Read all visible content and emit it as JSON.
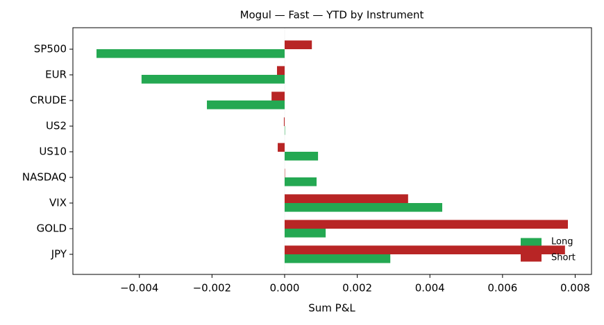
{
  "chart_data": {
    "type": "barh",
    "title": "Mogul — Fast — YTD by Instrument",
    "xlabel": "Sum P&L",
    "categories": [
      "SP500",
      "EUR",
      "CRUDE",
      "US2",
      "US10",
      "NASDAQ",
      "VIX",
      "GOLD",
      "JPY"
    ],
    "series": [
      {
        "name": "Long",
        "color": "#24a852",
        "values": [
          -0.00518,
          -0.00394,
          -0.00214,
          1e-05,
          0.00092,
          0.00088,
          0.00434,
          0.00113,
          0.00291
        ]
      },
      {
        "name": "Short",
        "color": "#b82525",
        "values": [
          0.00075,
          -0.00021,
          -0.00036,
          -2e-05,
          -0.00019,
          0,
          0.0034,
          0.0078,
          0.00772
        ]
      }
    ],
    "xlim": [
      -0.00583,
      0.00845
    ],
    "xticks": [
      {
        "value": -0.004,
        "label": "−0.004"
      },
      {
        "value": -0.002,
        "label": "−0.002"
      },
      {
        "value": 0,
        "label": "0.000"
      },
      0.002,
      0.004,
      0.006,
      0.008
    ],
    "legend": "lower right"
  }
}
